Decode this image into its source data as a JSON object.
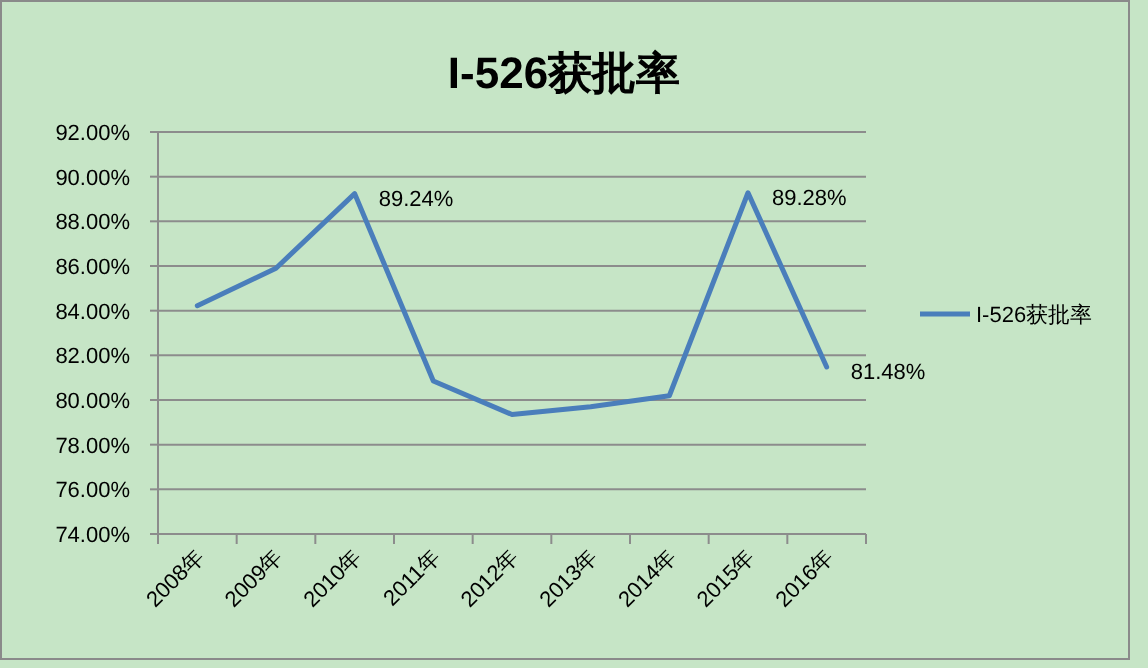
{
  "chart_data": {
    "type": "line",
    "title": "I-526获批率",
    "categories": [
      "2008年",
      "2009年",
      "2010年",
      "2011年",
      "2012年",
      "2013年",
      "2014年",
      "2015年",
      "2016年"
    ],
    "series": [
      {
        "name": "I-526获批率",
        "color": "#4a7ebb",
        "values": [
          84.22,
          85.9,
          89.24,
          80.85,
          79.35,
          79.7,
          80.19,
          89.28,
          81.48
        ],
        "value_labels": [
          null,
          null,
          "89.24%",
          null,
          null,
          null,
          null,
          "89.28%",
          "81.48%"
        ]
      }
    ],
    "ylim": [
      74,
      92
    ],
    "yticks": [
      {
        "value": 74,
        "label": "74.00%"
      },
      {
        "value": 76,
        "label": "76.00%"
      },
      {
        "value": 78,
        "label": "78.00%"
      },
      {
        "value": 80,
        "label": "80.00%"
      },
      {
        "value": 82,
        "label": "82.00%"
      },
      {
        "value": 84,
        "label": "84.00%"
      },
      {
        "value": 86,
        "label": "86.00%"
      },
      {
        "value": 88,
        "label": "88.00%"
      },
      {
        "value": 90,
        "label": "90.00%"
      },
      {
        "value": 92,
        "label": "92.00%"
      }
    ],
    "grid": "y",
    "legend": "right",
    "marker": "none",
    "line_style": "solid"
  }
}
